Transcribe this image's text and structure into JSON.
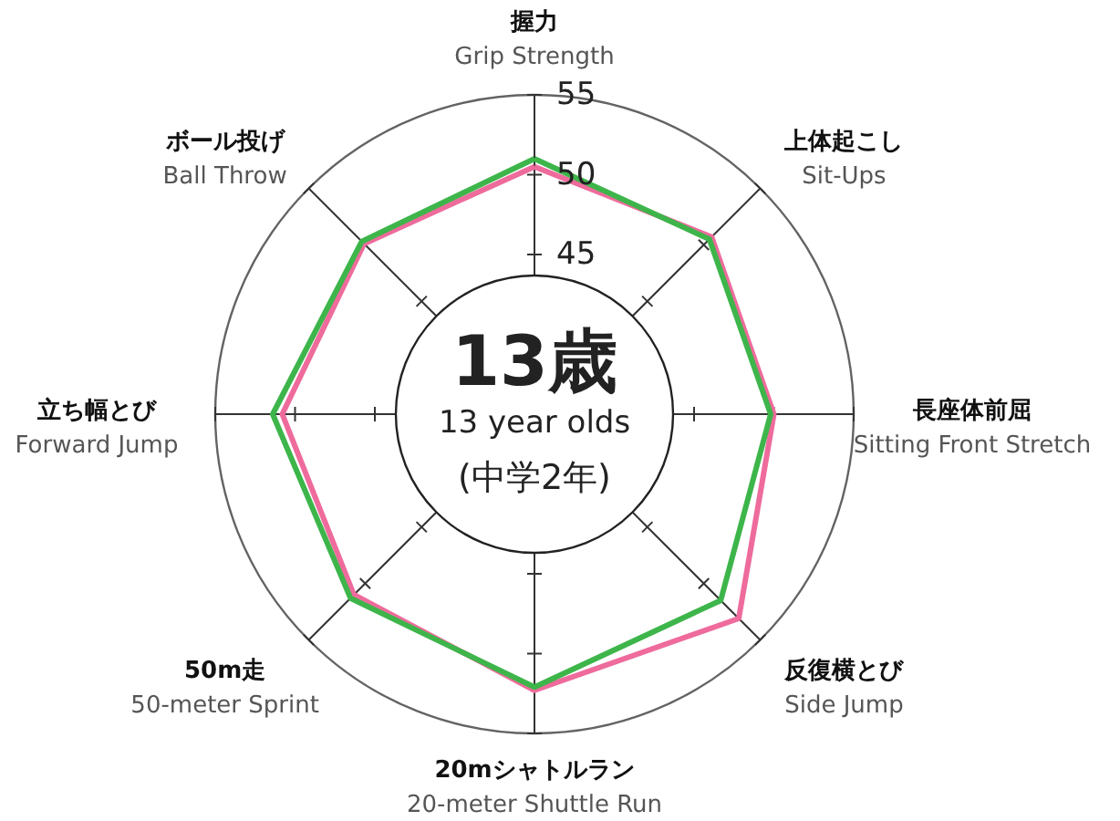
{
  "chart_data": {
    "type": "radar",
    "title": "13歳",
    "subtitle": "13 year olds",
    "annotations": [
      "(中学2年)"
    ],
    "categories": [
      "握力\nGrip Strength",
      "上体起こし\nSit-Ups",
      "長座体前屈\nSitting Front Stretch",
      "反復横とび\nSide Jump",
      "20mシャトルラン\n20-meter Shuttle Run",
      "50m走\n50-meter Sprint",
      "立ち幅とび\nForward Jump",
      "ボール投げ\nBall Throw"
    ],
    "ylim": [
      35,
      55
    ],
    "yticks": [
      45,
      50,
      55
    ],
    "series": [
      {
        "color": "#ee6b9c",
        "values": [
          50.5,
          50.7,
          50.0,
          53.1,
          52.3,
          51.0,
          50.8,
          50.1
        ]
      },
      {
        "color": "#3db54a",
        "values": [
          51.0,
          50.5,
          49.8,
          51.5,
          52.1,
          51.3,
          51.4,
          50.3
        ]
      }
    ]
  }
}
